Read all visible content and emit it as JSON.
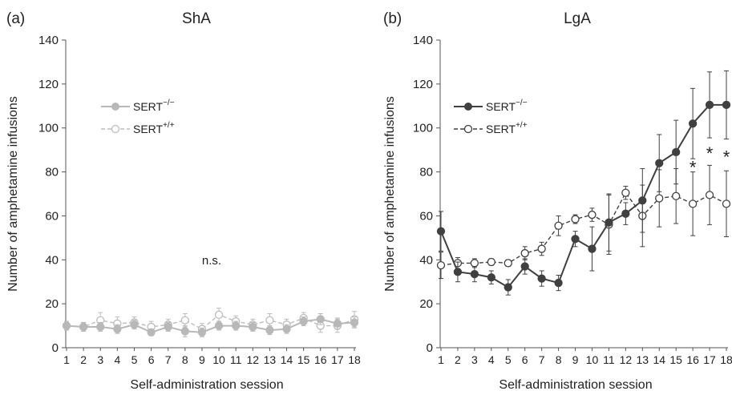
{
  "panels": [
    {
      "tag": "(a)",
      "title": "ShA",
      "annotation": "n.s."
    },
    {
      "tag": "(b)",
      "title": "LgA",
      "annotation": "*"
    }
  ],
  "legend": {
    "ko_base": "SERT",
    "ko_sup": "−/−",
    "wt_base": "SERT",
    "wt_sup": "+/+"
  },
  "colors": {
    "sha_ko": "#b8b8b8",
    "sha_wt": "#bdbdbd",
    "lga_ko": "#404040",
    "lga_wt": "#404040",
    "axis": "#555555"
  },
  "chart_data": [
    {
      "type": "line",
      "title": "ShA",
      "xlabel": "Self-administration session",
      "ylabel": "Number of amphetamine infusions",
      "ylim": [
        0,
        140
      ],
      "yticks": [
        0,
        20,
        40,
        60,
        80,
        100,
        120,
        140
      ],
      "x": [
        1,
        2,
        3,
        4,
        5,
        6,
        7,
        8,
        9,
        10,
        11,
        12,
        13,
        14,
        15,
        16,
        17,
        18
      ],
      "legend_position": "upper-left",
      "series": [
        {
          "name": "SERT−/−",
          "marker": "filled",
          "dash": false,
          "values": [
            10,
            9.5,
            9.5,
            8.5,
            10.5,
            7,
            9.5,
            7.5,
            7,
            10,
            10,
            9.5,
            8,
            8.5,
            12,
            13,
            11,
            11.5
          ],
          "errors": [
            2,
            2,
            2,
            2,
            2,
            1.5,
            2,
            2.5,
            2,
            2,
            2,
            2,
            2,
            2,
            2,
            2.5,
            2.5,
            2.5
          ]
        },
        {
          "name": "SERT+/+",
          "marker": "open",
          "dash": true,
          "values": [
            10,
            9.5,
            12.5,
            11,
            11.5,
            9.5,
            10.5,
            12.5,
            8.5,
            15,
            12,
            10.5,
            12.5,
            10.5,
            13.5,
            10,
            10,
            13
          ],
          "errors": [
            2,
            2,
            3.5,
            3,
            2.5,
            2.5,
            2.5,
            3,
            2.5,
            3,
            2.5,
            2.5,
            3,
            2.5,
            2.5,
            3,
            3,
            3.5
          ]
        }
      ]
    },
    {
      "type": "line",
      "title": "LgA",
      "xlabel": "Self-administration session",
      "ylabel": "Number of amphetamine infusions",
      "ylim": [
        0,
        140
      ],
      "yticks": [
        0,
        20,
        40,
        60,
        80,
        100,
        120,
        140
      ],
      "x": [
        1,
        2,
        3,
        4,
        5,
        6,
        7,
        8,
        9,
        10,
        11,
        12,
        13,
        14,
        15,
        16,
        17,
        18
      ],
      "legend_position": "upper-left",
      "significance_sessions": [
        16,
        17,
        18
      ],
      "series": [
        {
          "name": "SERT−/−",
          "marker": "filled",
          "dash": false,
          "values": [
            53,
            34.5,
            33.5,
            32,
            27.5,
            37,
            31.5,
            29.5,
            49.5,
            45,
            57,
            61,
            67,
            84,
            89,
            102,
            110.5,
            110.5
          ],
          "errors": [
            9,
            4.5,
            3.5,
            3,
            3.5,
            3.5,
            3.5,
            3.5,
            3.5,
            10,
            13,
            5,
            14.5,
            13,
            14.5,
            16,
            15,
            15.5
          ]
        },
        {
          "name": "SERT+/+",
          "marker": "open",
          "dash": true,
          "values": [
            37.5,
            38.5,
            38.5,
            39,
            38.5,
            43,
            45,
            55.5,
            58.5,
            60.5,
            56,
            70.5,
            60,
            68,
            69,
            65.5,
            69.5,
            65.5
          ],
          "errors": [
            6,
            2.5,
            2,
            1.5,
            1.5,
            3,
            3,
            4.5,
            2,
            3,
            13.5,
            3,
            14,
            13,
            12.5,
            14.5,
            13.5,
            15
          ]
        }
      ]
    }
  ]
}
